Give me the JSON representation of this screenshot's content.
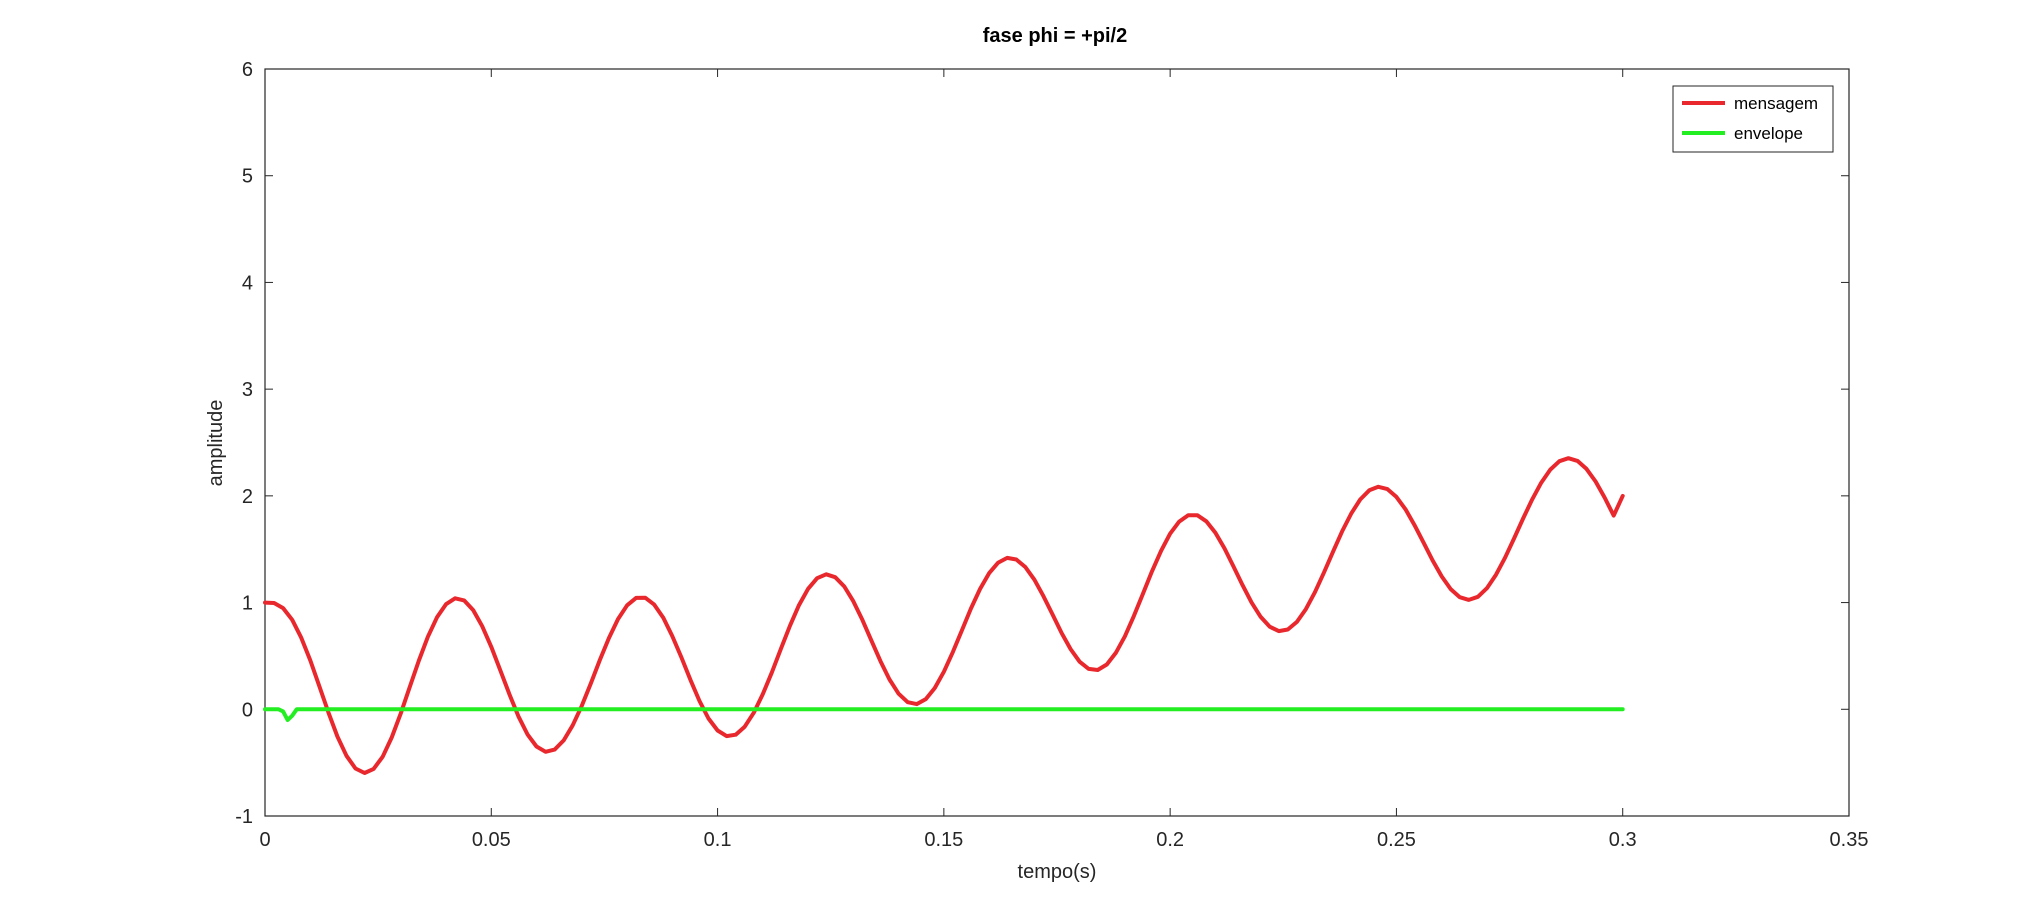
{
  "chart_data": {
    "type": "line",
    "title": "fase phi = +pi/2",
    "xlabel": "tempo(s)",
    "ylabel": "amplitude",
    "xlim": [
      0,
      0.35
    ],
    "ylim": [
      -1,
      6
    ],
    "xticks": [
      0,
      0.05,
      0.1,
      0.15,
      0.2,
      0.25,
      0.3,
      0.35
    ],
    "xtick_labels": [
      "0",
      "0.05",
      "0.1",
      "0.15",
      "0.2",
      "0.25",
      "0.3",
      "0.35"
    ],
    "yticks": [
      -1,
      0,
      1,
      2,
      3,
      4,
      5,
      6
    ],
    "ytick_labels": [
      "-1",
      "0",
      "1",
      "2",
      "3",
      "4",
      "5",
      "6"
    ],
    "grid": false,
    "legend_position": "top-right",
    "series": [
      {
        "name": "mensagem",
        "color": "#e8282d",
        "x": [
          0,
          0.002,
          0.004,
          0.006,
          0.008,
          0.01,
          0.012,
          0.014,
          0.016,
          0.018,
          0.02,
          0.022,
          0.024,
          0.026,
          0.028,
          0.03,
          0.032,
          0.034,
          0.036,
          0.038,
          0.04,
          0.042,
          0.044,
          0.046,
          0.048,
          0.05,
          0.052,
          0.054,
          0.056,
          0.058,
          0.06,
          0.062,
          0.064,
          0.066,
          0.068,
          0.07,
          0.072,
          0.074,
          0.076,
          0.078,
          0.08,
          0.082,
          0.084,
          0.086,
          0.088,
          0.09,
          0.092,
          0.094,
          0.096,
          0.098,
          0.1,
          0.102,
          0.104,
          0.106,
          0.108,
          0.11,
          0.112,
          0.114,
          0.116,
          0.118,
          0.12,
          0.122,
          0.124,
          0.126,
          0.128,
          0.13,
          0.132,
          0.134,
          0.136,
          0.138,
          0.14,
          0.142,
          0.144,
          0.146,
          0.148,
          0.15,
          0.152,
          0.154,
          0.156,
          0.158,
          0.16,
          0.162,
          0.164,
          0.166,
          0.168,
          0.17,
          0.172,
          0.174,
          0.176,
          0.178,
          0.18,
          0.182,
          0.184,
          0.186,
          0.188,
          0.19,
          0.192,
          0.194,
          0.196,
          0.198,
          0.2,
          0.202,
          0.204,
          0.206,
          0.208,
          0.21,
          0.212,
          0.214,
          0.216,
          0.218,
          0.22,
          0.222,
          0.224,
          0.226,
          0.228,
          0.23,
          0.232,
          0.234,
          0.236,
          0.238,
          0.24,
          0.242,
          0.244,
          0.246,
          0.248,
          0.25,
          0.252,
          0.254,
          0.256,
          0.258,
          0.26,
          0.262,
          0.264,
          0.266,
          0.268,
          0.27,
          0.272,
          0.274,
          0.276,
          0.278,
          0.28,
          0.282,
          0.284,
          0.286,
          0.288,
          0.29,
          0.292,
          0.294,
          0.296,
          0.298,
          0.3
        ],
        "y": [
          1,
          0.996,
          0.948,
          0.839,
          0.672,
          0.458,
          0.217,
          -0.029,
          -0.255,
          -0.436,
          -0.555,
          -0.597,
          -0.559,
          -0.444,
          -0.264,
          -0.038,
          0.21,
          0.457,
          0.68,
          0.862,
          0.985,
          1.04,
          1.02,
          0.929,
          0.779,
          0.585,
          0.365,
          0.141,
          -0.066,
          -0.235,
          -0.349,
          -0.398,
          -0.378,
          -0.292,
          -0.15,
          0.033,
          0.244,
          0.463,
          0.669,
          0.845,
          0.974,
          1.044,
          1.046,
          0.981,
          0.857,
          0.686,
          0.486,
          0.276,
          0.078,
          -0.086,
          -0.199,
          -0.251,
          -0.238,
          -0.163,
          -0.032,
          0.142,
          0.347,
          0.567,
          0.783,
          0.976,
          1.129,
          1.228,
          1.265,
          1.238,
          1.151,
          1.013,
          0.838,
          0.644,
          0.451,
          0.279,
          0.146,
          0.066,
          0.049,
          0.095,
          0.199,
          0.352,
          0.538,
          0.742,
          0.945,
          1.128,
          1.275,
          1.375,
          1.419,
          1.404,
          1.333,
          1.214,
          1.061,
          0.889,
          0.717,
          0.564,
          0.446,
          0.378,
          0.368,
          0.42,
          0.528,
          0.684,
          0.875,
          1.084,
          1.293,
          1.485,
          1.645,
          1.759,
          1.819,
          1.819,
          1.762,
          1.655,
          1.508,
          1.338,
          1.163,
          1.0,
          0.866,
          0.774,
          0.733,
          0.748,
          0.819,
          0.939,
          1.098,
          1.283,
          1.478,
          1.667,
          1.834,
          1.966,
          2.052,
          2.085,
          2.063,
          1.99,
          1.874,
          1.726,
          1.561,
          1.395,
          1.245,
          1.126,
          1.05,
          1.025,
          1.054,
          1.135,
          1.261,
          1.42,
          1.601,
          1.788,
          1.967,
          2.124,
          2.246,
          2.325,
          2.353,
          2.328,
          2.253,
          2.135,
          1.985,
          1.815,
          2.0
        ]
      },
      {
        "name": "envelope",
        "color": "#22ee22",
        "x": [
          0,
          0.003,
          0.004,
          0.005,
          0.006,
          0.007,
          0.3
        ],
        "y": [
          0,
          0,
          -0.02,
          -0.1,
          -0.06,
          0,
          0
        ]
      }
    ]
  }
}
